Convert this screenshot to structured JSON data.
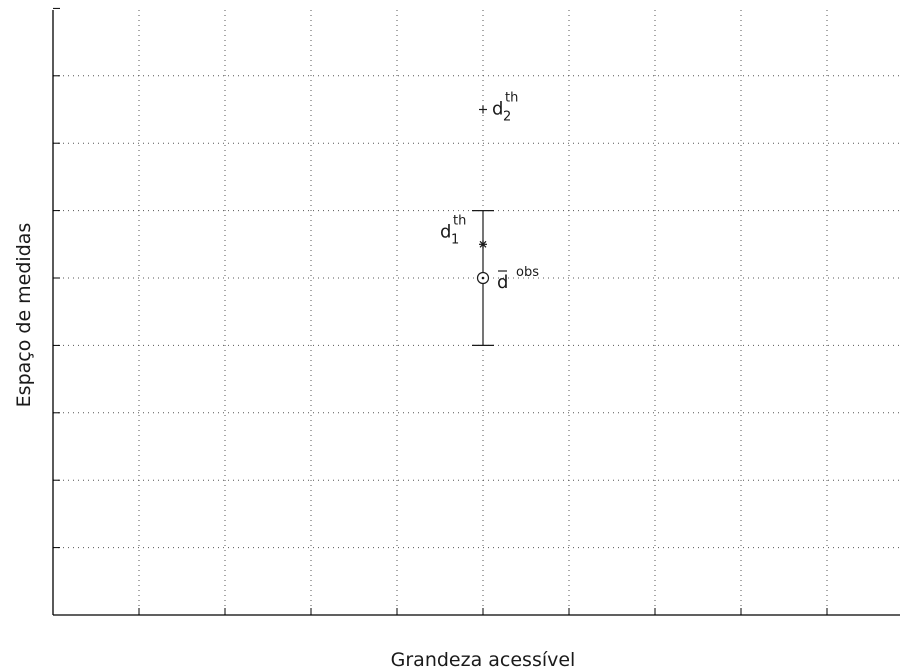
{
  "chart_data": {
    "type": "scatter",
    "xlabel": "Grandeza acessível",
    "ylabel": "Espaço de medidas",
    "xlim": [
      0,
      10
    ],
    "ylim": [
      0,
      9
    ],
    "grid": true,
    "tick_labels_shown": false,
    "points": [
      {
        "name": "d_2^th",
        "label": {
          "base": "d",
          "sub": "2",
          "sup": "th"
        },
        "marker": "plus",
        "x": 5,
        "y": 7.5
      },
      {
        "name": "d_1^th",
        "label": {
          "base": "d",
          "sub": "1",
          "sup": "th"
        },
        "marker": "asterisk",
        "x": 5,
        "y": 5.5
      },
      {
        "name": "d̄^obs",
        "label": {
          "base": "d",
          "bar": true,
          "sup": "obs"
        },
        "marker": "circle",
        "x": 5,
        "y": 5,
        "error_bar": [
          4,
          6
        ]
      }
    ]
  },
  "colors": {
    "axis": "#000000",
    "grid": "#555555",
    "marker": "#1a1a1a"
  }
}
